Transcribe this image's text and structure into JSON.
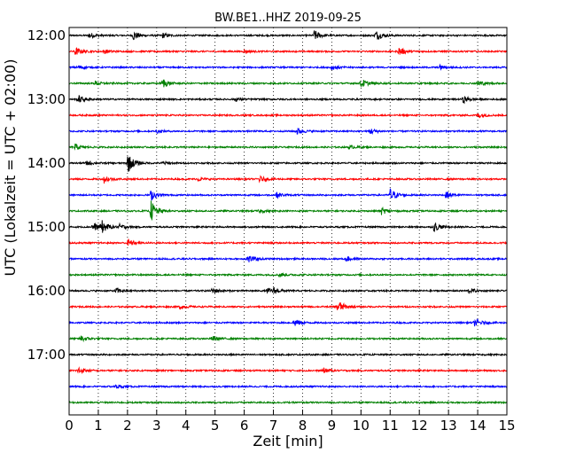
{
  "chart_data": {
    "type": "line",
    "subtype": "seismogram-helicorder",
    "title": "BW.BE1..HHZ 2019-09-25",
    "xlabel": "Zeit  [min]",
    "ylabel": "UTC (Lokalzeit = UTC + 02:00)",
    "xlim": [
      0,
      15
    ],
    "x_ticks": [
      0,
      1,
      2,
      3,
      4,
      5,
      6,
      7,
      8,
      9,
      10,
      11,
      12,
      13,
      14,
      15
    ],
    "y_tick_labels": [
      "12:00",
      "13:00",
      "14:00",
      "15:00",
      "16:00",
      "17:00"
    ],
    "y_tick_row_indices": [
      0,
      4,
      8,
      12,
      16,
      20
    ],
    "grid": "vertical-dotted",
    "trace_colors": [
      "#000000",
      "#ff0000",
      "#0000ff",
      "#008000"
    ],
    "rows": [
      {
        "start": "12:00",
        "events": [
          {
            "t": 2.2,
            "a": 0.45
          },
          {
            "t": 8.4,
            "a": 0.5
          },
          {
            "t": 10.5,
            "a": 0.5
          },
          {
            "t": 3.2,
            "a": 0.25
          },
          {
            "t": 0.7,
            "a": 0.25
          }
        ]
      },
      {
        "start": "12:15",
        "events": [
          {
            "t": 0.2,
            "a": 0.4
          },
          {
            "t": 1.2,
            "a": 0.2
          },
          {
            "t": 11.3,
            "a": 0.4
          },
          {
            "t": 6.0,
            "a": 0.15
          }
        ]
      },
      {
        "start": "12:30",
        "events": [
          {
            "t": 0.3,
            "a": 0.2
          },
          {
            "t": 9.0,
            "a": 0.2
          },
          {
            "t": 12.7,
            "a": 0.2
          }
        ]
      },
      {
        "start": "12:45",
        "events": [
          {
            "t": 3.2,
            "a": 0.45
          },
          {
            "t": 10.0,
            "a": 0.45
          },
          {
            "t": 14.0,
            "a": 0.3
          },
          {
            "t": 0.9,
            "a": 0.2
          }
        ]
      },
      {
        "start": "13:00",
        "events": [
          {
            "t": 0.3,
            "a": 0.4
          },
          {
            "t": 13.5,
            "a": 0.35
          },
          {
            "t": 5.7,
            "a": 0.15
          }
        ]
      },
      {
        "start": "13:15",
        "events": [
          {
            "t": 14.0,
            "a": 0.3
          }
        ]
      },
      {
        "start": "13:30",
        "events": [
          {
            "t": 7.8,
            "a": 0.35
          },
          {
            "t": 10.3,
            "a": 0.3
          },
          {
            "t": 3.0,
            "a": 0.15
          }
        ]
      },
      {
        "start": "13:45",
        "events": [
          {
            "t": 0.2,
            "a": 0.3
          },
          {
            "t": 9.6,
            "a": 0.15
          }
        ]
      },
      {
        "start": "14:00",
        "events": [
          {
            "t": 2.0,
            "a": 0.95
          },
          {
            "t": 0.6,
            "a": 0.2
          },
          {
            "t": 3.2,
            "a": 0.15
          }
        ]
      },
      {
        "start": "14:15",
        "events": [
          {
            "t": 1.2,
            "a": 0.35
          },
          {
            "t": 6.5,
            "a": 0.3
          },
          {
            "t": 4.4,
            "a": 0.2
          }
        ]
      },
      {
        "start": "14:30",
        "events": [
          {
            "t": 2.8,
            "a": 0.5
          },
          {
            "t": 7.1,
            "a": 0.25
          },
          {
            "t": 11.0,
            "a": 0.65
          },
          {
            "t": 12.9,
            "a": 0.35
          }
        ]
      },
      {
        "start": "14:45",
        "events": [
          {
            "t": 2.8,
            "a": 1.0
          },
          {
            "t": 10.7,
            "a": 0.35
          },
          {
            "t": 6.5,
            "a": 0.15
          }
        ]
      },
      {
        "start": "15:00",
        "events": [
          {
            "t": 0.8,
            "a": 0.45
          },
          {
            "t": 1.1,
            "a": 0.6
          },
          {
            "t": 12.5,
            "a": 0.45
          },
          {
            "t": 1.7,
            "a": 0.25
          }
        ]
      },
      {
        "start": "15:15",
        "events": [
          {
            "t": 2.0,
            "a": 0.4
          }
        ]
      },
      {
        "start": "15:30",
        "events": [
          {
            "t": 6.1,
            "a": 0.45
          },
          {
            "t": 9.5,
            "a": 0.25
          }
        ]
      },
      {
        "start": "15:45",
        "events": [
          {
            "t": 7.2,
            "a": 0.2
          }
        ]
      },
      {
        "start": "16:00",
        "events": [
          {
            "t": 1.6,
            "a": 0.25
          },
          {
            "t": 4.9,
            "a": 0.3
          },
          {
            "t": 7.0,
            "a": 0.25
          },
          {
            "t": 13.7,
            "a": 0.25
          },
          {
            "t": 6.8,
            "a": 0.2
          }
        ]
      },
      {
        "start": "16:15",
        "events": [
          {
            "t": 9.2,
            "a": 0.65
          },
          {
            "t": 3.8,
            "a": 0.2
          }
        ]
      },
      {
        "start": "16:30",
        "events": [
          {
            "t": 7.7,
            "a": 0.4
          },
          {
            "t": 13.9,
            "a": 0.35
          }
        ]
      },
      {
        "start": "16:45",
        "events": [
          {
            "t": 0.4,
            "a": 0.3
          },
          {
            "t": 4.9,
            "a": 0.25
          }
        ]
      },
      {
        "start": "17:00",
        "events": []
      },
      {
        "start": "17:15",
        "events": [
          {
            "t": 0.3,
            "a": 0.35
          },
          {
            "t": 8.7,
            "a": 0.25
          }
        ]
      },
      {
        "start": "17:30",
        "events": [
          {
            "t": 1.6,
            "a": 0.15
          }
        ]
      },
      {
        "start": "17:45",
        "events": []
      }
    ]
  }
}
